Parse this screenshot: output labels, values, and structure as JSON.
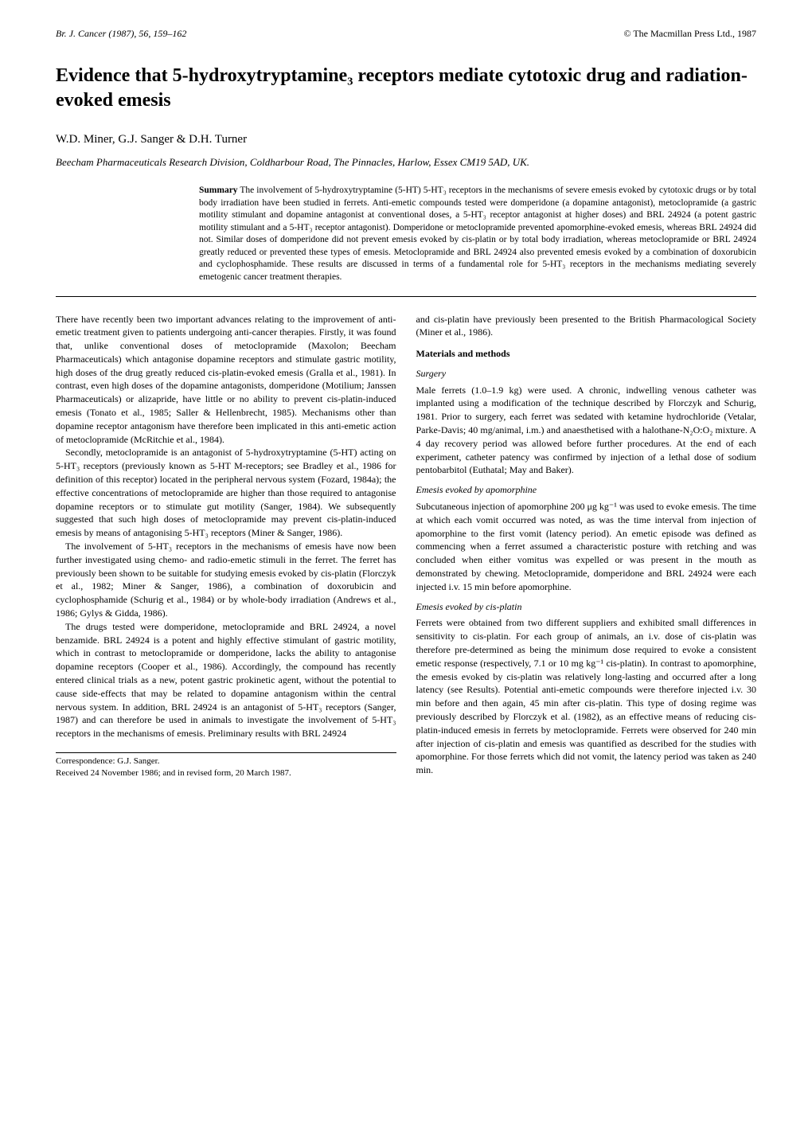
{
  "header": {
    "journal": "Br. J. Cancer (1987), 56, 159–162",
    "publisher": "© The Macmillan Press Ltd., 1987"
  },
  "title": "Evidence that 5-hydroxytryptamine₃ receptors mediate cytotoxic drug and radiation-evoked emesis",
  "authors": "W.D. Miner, G.J. Sanger & D.H. Turner",
  "affiliation": "Beecham Pharmaceuticals Research Division, Coldharbour Road, The Pinnacles, Harlow, Essex CM19 5AD, UK.",
  "summary": {
    "label": "Summary",
    "text": "The involvement of 5-hydroxytryptamine (5-HT) 5-HT₃ receptors in the mechanisms of severe emesis evoked by cytotoxic drugs or by total body irradiation have been studied in ferrets. Anti-emetic compounds tested were domperidone (a dopamine antagonist), metoclopramide (a gastric motility stimulant and dopamine antagonist at conventional doses, a 5-HT₃ receptor antagonist at higher doses) and BRL 24924 (a potent gastric motility stimulant and a 5-HT₃ receptor antagonist). Domperidone or metoclopramide prevented apomorphine-evoked emesis, whereas BRL 24924 did not. Similar doses of domperidone did not prevent emesis evoked by cis-platin or by total body irradiation, whereas metoclopramide or BRL 24924 greatly reduced or prevented these types of emesis. Metoclopramide and BRL 24924 also prevented emesis evoked by a combination of doxorubicin and cyclophosphamide. These results are discussed in terms of a fundamental role for 5-HT₃ receptors in the mechanisms mediating severely emetogenic cancer treatment therapies."
  },
  "leftColumn": {
    "p1": "There have recently been two important advances relating to the improvement of anti-emetic treatment given to patients undergoing anti-cancer therapies. Firstly, it was found that, unlike conventional doses of metoclopramide (Maxolon; Beecham Pharmaceuticals) which antagonise dopamine receptors and stimulate gastric motility, high doses of the drug greatly reduced cis-platin-evoked emesis (Gralla et al., 1981). In contrast, even high doses of the dopamine antagonists, domperidone (Motilium; Janssen Pharmaceuticals) or alizapride, have little or no ability to prevent cis-platin-induced emesis (Tonato et al., 1985; Saller & Hellenbrecht, 1985). Mechanisms other than dopamine receptor antagonism have therefore been implicated in this anti-emetic action of metoclopramide (McRitchie et al., 1984).",
    "p2": "Secondly, metoclopramide is an antagonist of 5-hydroxytryptamine (5-HT) acting on 5-HT₃ receptors (previously known as 5-HT M-receptors; see Bradley et al., 1986 for definition of this receptor) located in the peripheral nervous system (Fozard, 1984a); the effective concentrations of metoclopramide are higher than those required to antagonise dopamine receptors or to stimulate gut motility (Sanger, 1984). We subsequently suggested that such high doses of metoclopramide may prevent cis-platin-induced emesis by means of antagonising 5-HT₃ receptors (Miner & Sanger, 1986).",
    "p3": "The involvement of 5-HT₃ receptors in the mechanisms of emesis have now been further investigated using chemo- and radio-emetic stimuli in the ferret. The ferret has previously been shown to be suitable for studying emesis evoked by cis-platin (Florczyk et al., 1982; Miner & Sanger, 1986), a combination of doxorubicin and cyclophosphamide (Schurig et al., 1984) or by whole-body irradiation (Andrews et al., 1986; Gylys & Gidda, 1986).",
    "p4": "The drugs tested were domperidone, metoclopramide and BRL 24924, a novel benzamide. BRL 24924 is a potent and highly effective stimulant of gastric motility, which in contrast to metoclopramide or domperidone, lacks the ability to antagonise dopamine receptors (Cooper et al., 1986). Accordingly, the compound has recently entered clinical trials as a new, potent gastric prokinetic agent, without the potential to cause side-effects that may be related to dopamine antagonism within the central nervous system. In addition, BRL 24924 is an antagonist of 5-HT₃ receptors (Sanger, 1987) and can therefore be used in animals to investigate the involvement of 5-HT₃ receptors in the mechanisms of emesis. Preliminary results with BRL 24924",
    "corr1": "Correspondence: G.J. Sanger.",
    "corr2": "Received 24 November 1986; and in revised form, 20 March 1987."
  },
  "rightColumn": {
    "p1": "and cis-platin have previously been presented to the British Pharmacological Society (Miner et al., 1986).",
    "materialsHeading": "Materials and methods",
    "surgeryHeading": "Surgery",
    "surgeryText": "Male ferrets (1.0–1.9 kg) were used. A chronic, indwelling venous catheter was implanted using a modification of the technique described by Florczyk and Schurig, 1981. Prior to surgery, each ferret was sedated with ketamine hydrochloride (Vetalar, Parke-Davis; 40 mg/animal, i.m.) and anaesthetised with a halothane-N₂O:O₂ mixture. A 4 day recovery period was allowed before further procedures. At the end of each experiment, catheter patency was confirmed by injection of a lethal dose of sodium pentobarbitol (Euthatal; May and Baker).",
    "apoHeading": "Emesis evoked by apomorphine",
    "apoText": "Subcutaneous injection of apomorphine 200 μg kg⁻¹ was used to evoke emesis. The time at which each vomit occurred was noted, as was the time interval from injection of apomorphine to the first vomit (latency period). An emetic episode was defined as commencing when a ferret assumed a characteristic posture with retching and was concluded when either vomitus was expelled or was present in the mouth as demonstrated by chewing. Metoclopramide, domperidone and BRL 24924 were each injected i.v. 15 min before apomorphine.",
    "cisHeading": "Emesis evoked by cis-platin",
    "cisText": "Ferrets were obtained from two different suppliers and exhibited small differences in sensitivity to cis-platin. For each group of animals, an i.v. dose of cis-platin was therefore pre-determined as being the minimum dose required to evoke a consistent emetic response (respectively, 7.1 or 10 mg kg⁻¹ cis-platin). In contrast to apomorphine, the emesis evoked by cis-platin was relatively long-lasting and occurred after a long latency (see Results). Potential anti-emetic compounds were therefore injected i.v. 30 min before and then again, 45 min after cis-platin. This type of dosing regime was previously described by Florczyk et al. (1982), as an effective means of reducing cis-platin-induced emesis in ferrets by metoclopramide. Ferrets were observed for 240 min after injection of cis-platin and emesis was quantified as described for the studies with apomorphine. For those ferrets which did not vomit, the latency period was taken as 240 min."
  }
}
